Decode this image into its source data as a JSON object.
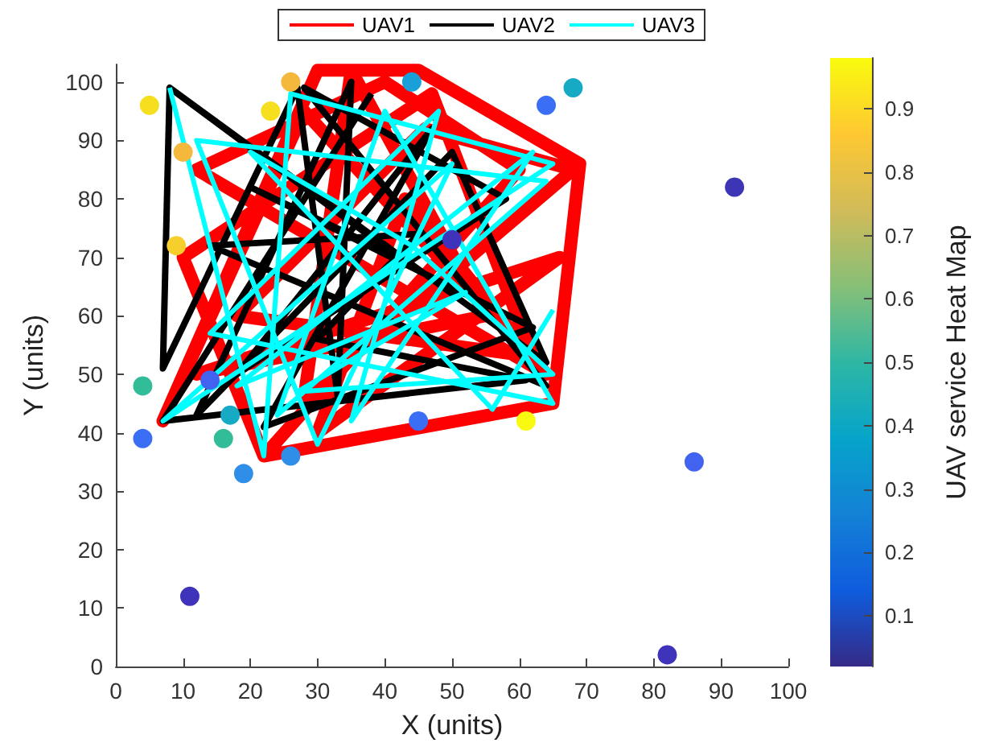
{
  "chart_data": {
    "type": "line",
    "xlabel": "X (units)",
    "ylabel": "Y (units)",
    "clabel": "UAV service Heat Map",
    "xlim": [
      0,
      100
    ],
    "ylim": [
      0,
      103
    ],
    "xticks": [
      0,
      10,
      20,
      30,
      40,
      50,
      60,
      70,
      80,
      90,
      100
    ],
    "yticks": [
      0,
      10,
      20,
      30,
      40,
      50,
      60,
      70,
      80,
      90,
      100
    ],
    "clim": [
      0.02,
      0.98
    ],
    "cticks": [
      0.1,
      0.2,
      0.3,
      0.4,
      0.5,
      0.6,
      0.7,
      0.8,
      0.9
    ],
    "grid": false,
    "legend": "top",
    "series": [
      {
        "name": "UAV1",
        "color": "#ff0000",
        "marker": "none",
        "x": [
          22,
          65,
          69,
          45,
          30,
          7,
          28,
          64,
          12,
          40,
          60,
          22,
          10,
          47,
          62,
          18,
          46,
          68,
          28,
          35,
          55,
          12,
          66,
          30,
          43,
          64
        ],
        "values": [
          36,
          45,
          86,
          102,
          102,
          42,
          95,
          50,
          85,
          100,
          85,
          36,
          70,
          98,
          53,
          60,
          92,
          85,
          46,
          102,
          60,
          50,
          70,
          40,
          80,
          50
        ]
      },
      {
        "name": "UAV2",
        "color": "#000000",
        "marker": "none",
        "x": [
          8,
          7,
          27,
          33,
          35,
          12,
          50,
          64,
          8,
          42,
          20,
          62,
          22,
          47,
          18,
          58,
          28,
          64,
          14,
          45,
          30,
          61,
          7,
          38
        ],
        "values": [
          99,
          51,
          99,
          46,
          100,
          43,
          88,
          52,
          99,
          70,
          82,
          58,
          41,
          92,
          50,
          80,
          99,
          48,
          72,
          74,
          56,
          49,
          42,
          98
        ]
      },
      {
        "name": "UAV3",
        "color": "#00ffff",
        "marker": "none",
        "x": [
          8,
          22,
          26,
          65,
          7,
          50,
          30,
          12,
          64,
          24,
          40,
          65,
          14,
          48,
          35,
          62,
          18,
          52,
          27,
          65,
          44,
          20,
          56,
          65
        ],
        "values": [
          99,
          36,
          98,
          86,
          42,
          86,
          38,
          90,
          83,
          43,
          95,
          45,
          57,
          95,
          42,
          88,
          48,
          64,
          47,
          50,
          72,
          88,
          44,
          61
        ]
      },
      {
        "type": "scatter",
        "marker": "circle",
        "x": [
          5,
          10,
          9,
          4,
          4,
          14,
          16,
          17,
          19,
          26,
          11,
          45,
          61,
          26,
          23,
          44,
          64,
          68,
          92,
          50,
          86,
          82
        ],
        "values": [
          96,
          88,
          72,
          48,
          39,
          49,
          39,
          43,
          33,
          36,
          12,
          42,
          42,
          100,
          95,
          100,
          96,
          99,
          82,
          73,
          35,
          2
        ],
        "colors": [
          "#f5df1e",
          "#f4b93c",
          "#f7cf2c",
          "#33bc98",
          "#3a6ef5",
          "#4263f0",
          "#33bc98",
          "#17aac5",
          "#2e8ee8",
          "#2e8ee8",
          "#3f32bb",
          "#3a6ef5",
          "#f9f811",
          "#f4b93c",
          "#f5df1e",
          "#1aa0d8",
          "#3a6ef5",
          "#17aac5",
          "#3d35b5",
          "#3f32bb",
          "#4263f0",
          "#3f32bb"
        ]
      }
    ]
  }
}
